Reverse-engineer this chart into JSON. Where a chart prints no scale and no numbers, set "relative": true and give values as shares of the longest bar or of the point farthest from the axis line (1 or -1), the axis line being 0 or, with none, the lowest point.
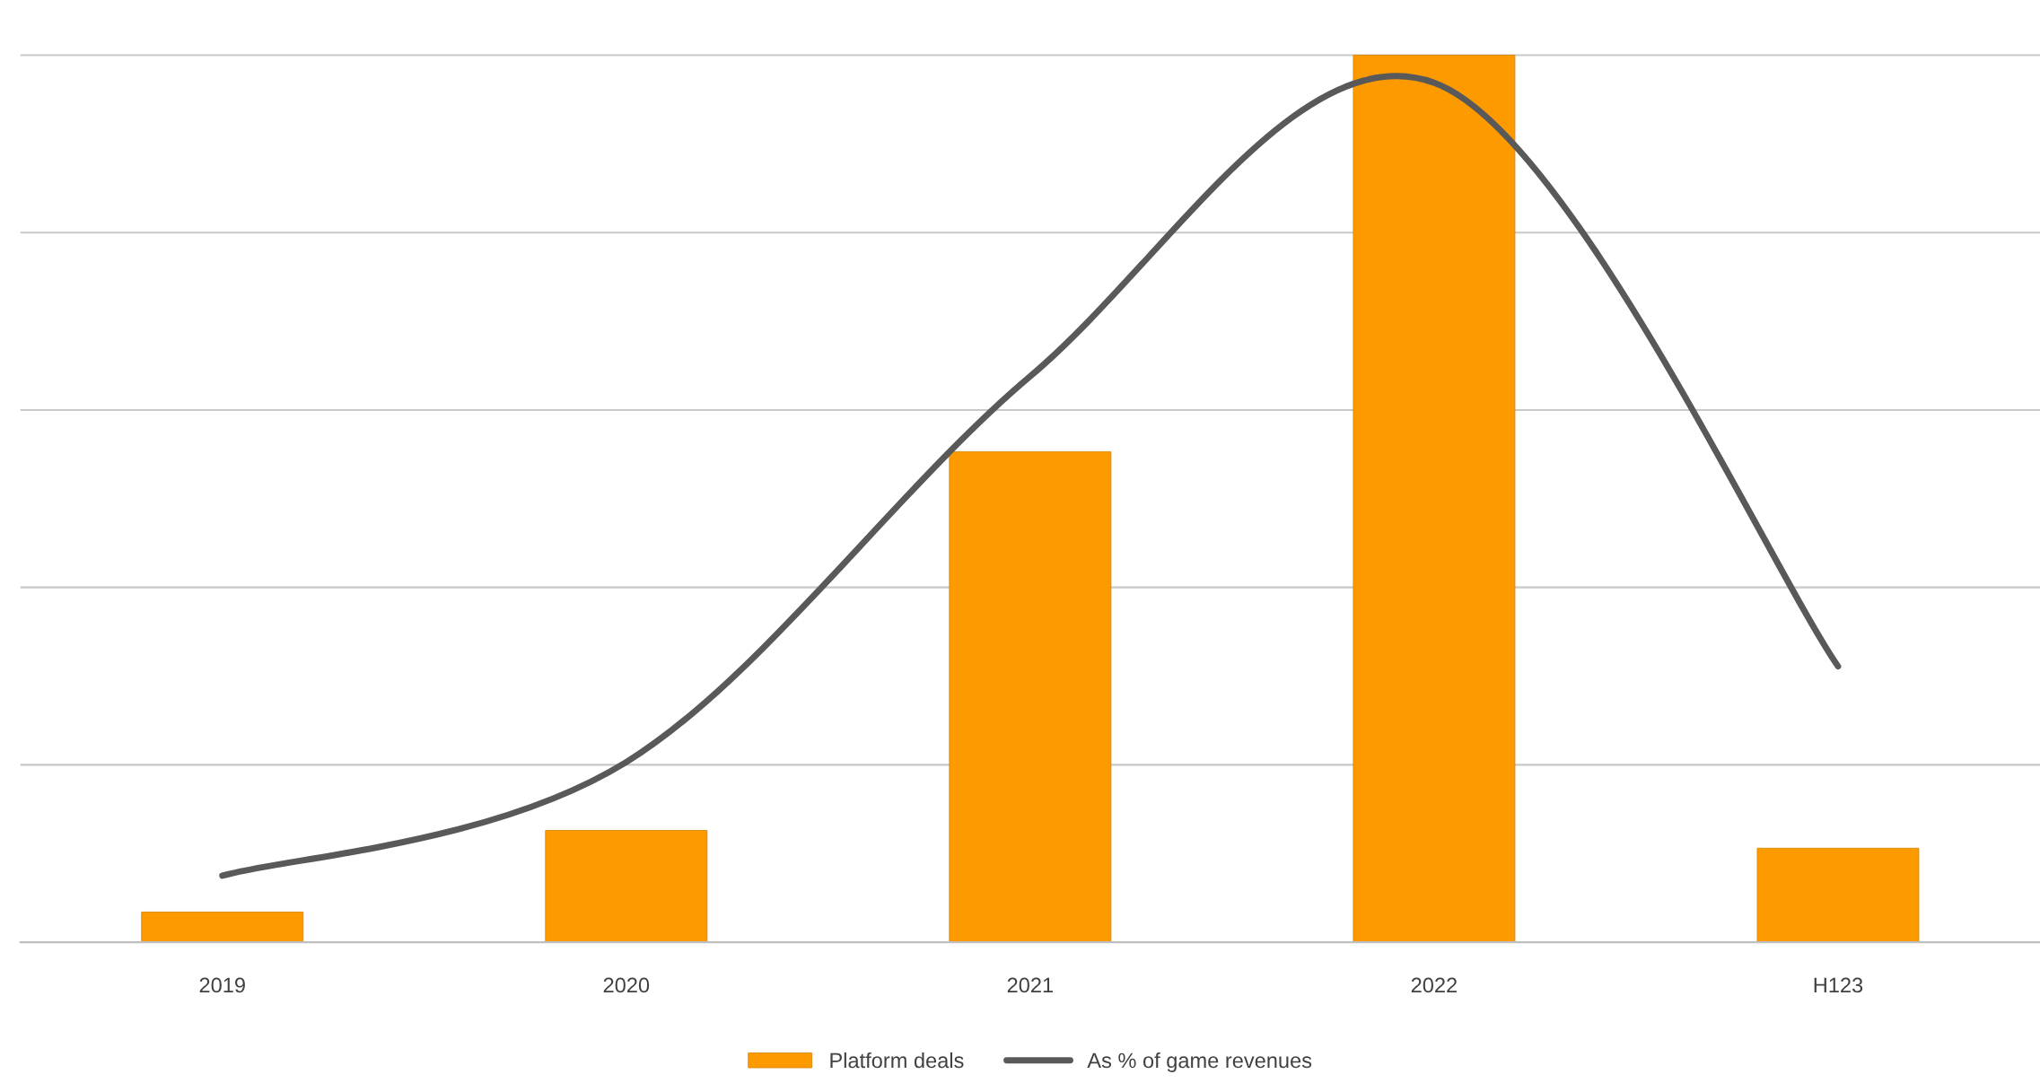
{
  "chart_data": {
    "type": "bar",
    "relative": true,
    "categories": [
      "2019",
      "2020",
      "2021",
      "2022",
      "H123"
    ],
    "series": [
      {
        "name": "Platform deals",
        "color": "#fd9a00",
        "values": [
          0.034,
          0.126,
          0.553,
          1,
          0.106
        ]
      },
      {
        "name": "As % of game revenues",
        "type": "line",
        "color": "#595959",
        "values": [
          0.075,
          0.203,
          0.638,
          0.969,
          0.311
        ]
      }
    ],
    "grid": "y",
    "legend": "bottom",
    "marker": "none",
    "line_style": "solid"
  }
}
